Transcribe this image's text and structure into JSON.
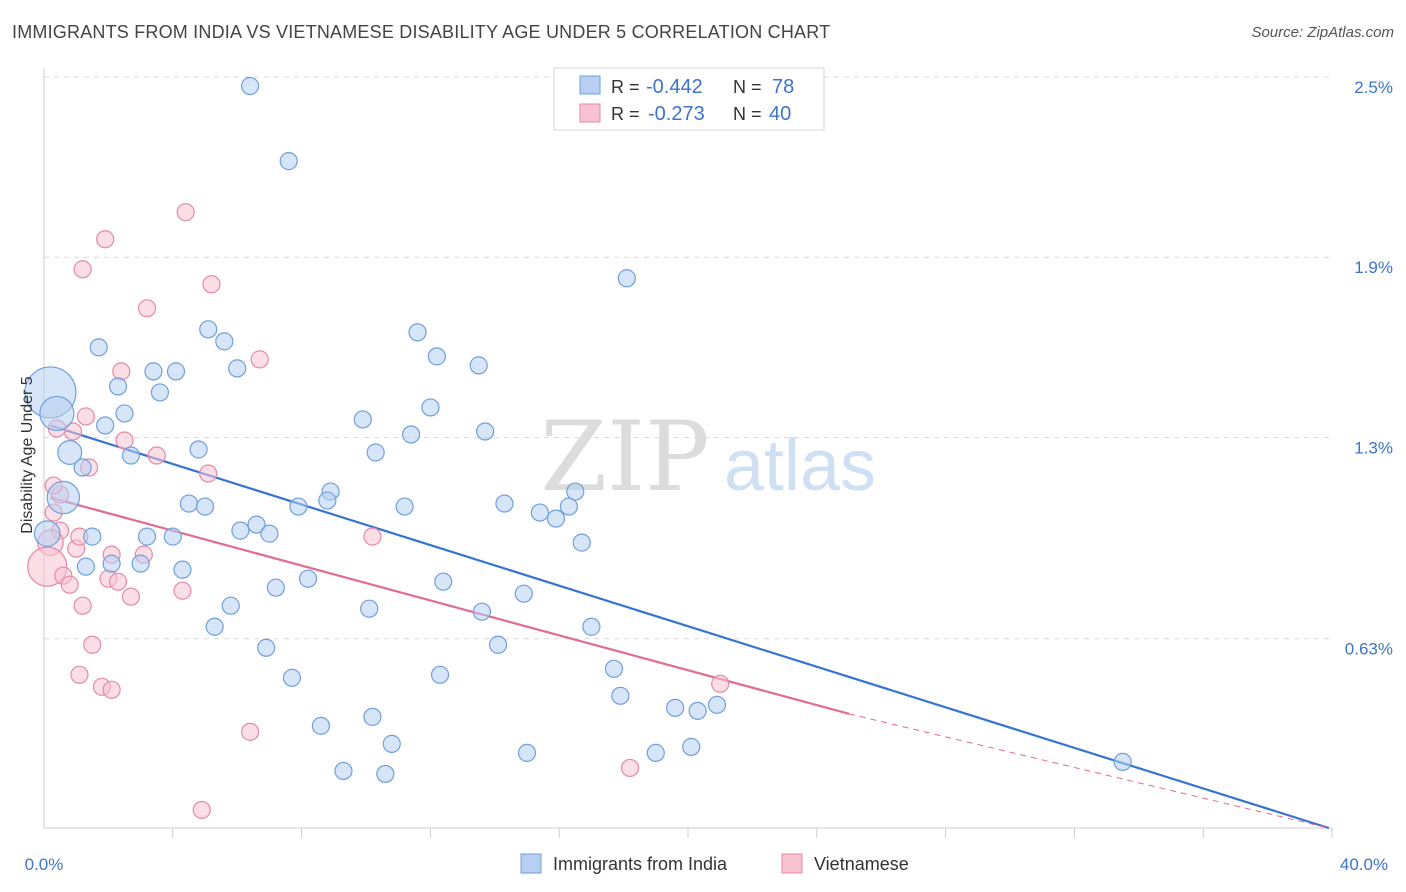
{
  "title": "IMMIGRANTS FROM INDIA VS VIETNAMESE DISABILITY AGE UNDER 5 CORRELATION CHART",
  "source": "Source: ZipAtlas.com",
  "watermark": {
    "zip": "ZIP",
    "atlas": "atlas"
  },
  "colors": {
    "india_fill": "#b6cff2",
    "india_stroke": "#6f9fdc",
    "india_line": "#3574d0",
    "viet_fill": "#f7c3d2",
    "viet_stroke": "#e58aa7",
    "viet_line": "#e06b96",
    "tick_label": "#3d74c9",
    "grid": "#d8d8d8"
  },
  "stats_box": {
    "india": {
      "r_label": "R =",
      "r_value": "-0.442",
      "n_label": "N =",
      "n_value": "78"
    },
    "viet": {
      "r_label": "R =",
      "r_value": "-0.273",
      "n_label": "N =",
      "n_value": "40"
    }
  },
  "chart_data": {
    "type": "scatter",
    "title": "IMMIGRANTS FROM INDIA VS VIETNAMESE DISABILITY AGE UNDER 5 CORRELATION CHART",
    "xlabel": "",
    "ylabel": "Disability Age Under 5",
    "xlim": [
      0,
      40
    ],
    "ylim": [
      0,
      2.5
    ],
    "x_tick_labels": [
      "0.0%",
      "40.0%"
    ],
    "y_ticks": [
      2.5,
      1.9,
      1.3,
      0.63
    ],
    "y_tick_labels": [
      "2.5%",
      "1.9%",
      "1.3%",
      "0.63%"
    ],
    "grid": true,
    "legend_position": "bottom-center",
    "series": [
      {
        "name": "Immigrants from India",
        "trend": {
          "x": [
            0.2,
            39.9
          ],
          "y": [
            1.34,
            0.0
          ]
        },
        "points": [
          {
            "x": 6.4,
            "y": 2.47
          },
          {
            "x": 7.6,
            "y": 2.22
          },
          {
            "x": 18.1,
            "y": 1.83
          },
          {
            "x": 0.2,
            "y": 1.45,
            "s": 3
          },
          {
            "x": 0.4,
            "y": 1.38,
            "s": 2
          },
          {
            "x": 1.7,
            "y": 1.6
          },
          {
            "x": 5.1,
            "y": 1.66
          },
          {
            "x": 5.6,
            "y": 1.62
          },
          {
            "x": 3.4,
            "y": 1.52
          },
          {
            "x": 4.1,
            "y": 1.52
          },
          {
            "x": 6.0,
            "y": 1.53
          },
          {
            "x": 2.3,
            "y": 1.47
          },
          {
            "x": 3.6,
            "y": 1.45
          },
          {
            "x": 11.6,
            "y": 1.65
          },
          {
            "x": 12.2,
            "y": 1.57
          },
          {
            "x": 13.5,
            "y": 1.54
          },
          {
            "x": 2.5,
            "y": 1.38
          },
          {
            "x": 1.9,
            "y": 1.34
          },
          {
            "x": 9.9,
            "y": 1.36
          },
          {
            "x": 12.0,
            "y": 1.4
          },
          {
            "x": 0.8,
            "y": 1.25,
            "s": 1.4
          },
          {
            "x": 2.7,
            "y": 1.24
          },
          {
            "x": 4.8,
            "y": 1.26
          },
          {
            "x": 10.3,
            "y": 1.25
          },
          {
            "x": 11.4,
            "y": 1.31
          },
          {
            "x": 13.7,
            "y": 1.32
          },
          {
            "x": 1.2,
            "y": 1.2
          },
          {
            "x": 8.9,
            "y": 1.12
          },
          {
            "x": 0.6,
            "y": 1.1,
            "s": 1.9
          },
          {
            "x": 4.5,
            "y": 1.08
          },
          {
            "x": 5.0,
            "y": 1.07
          },
          {
            "x": 7.9,
            "y": 1.07
          },
          {
            "x": 8.8,
            "y": 1.09
          },
          {
            "x": 11.2,
            "y": 1.07
          },
          {
            "x": 14.3,
            "y": 1.08
          },
          {
            "x": 15.4,
            "y": 1.05
          },
          {
            "x": 16.3,
            "y": 1.07
          },
          {
            "x": 16.5,
            "y": 1.12
          },
          {
            "x": 15.9,
            "y": 1.03
          },
          {
            "x": 6.6,
            "y": 1.01
          },
          {
            "x": 0.1,
            "y": 0.98,
            "s": 1.5
          },
          {
            "x": 1.5,
            "y": 0.97
          },
          {
            "x": 3.2,
            "y": 0.97
          },
          {
            "x": 4.0,
            "y": 0.97
          },
          {
            "x": 6.1,
            "y": 0.99
          },
          {
            "x": 7.0,
            "y": 0.98
          },
          {
            "x": 16.7,
            "y": 0.95
          },
          {
            "x": 2.1,
            "y": 0.88
          },
          {
            "x": 3.0,
            "y": 0.88
          },
          {
            "x": 4.3,
            "y": 0.86
          },
          {
            "x": 8.2,
            "y": 0.83
          },
          {
            "x": 7.2,
            "y": 0.8
          },
          {
            "x": 12.4,
            "y": 0.82
          },
          {
            "x": 14.9,
            "y": 0.78
          },
          {
            "x": 5.8,
            "y": 0.74
          },
          {
            "x": 10.1,
            "y": 0.73
          },
          {
            "x": 5.3,
            "y": 0.67
          },
          {
            "x": 13.6,
            "y": 0.72
          },
          {
            "x": 17.0,
            "y": 0.67
          },
          {
            "x": 6.9,
            "y": 0.6
          },
          {
            "x": 14.1,
            "y": 0.61
          },
          {
            "x": 17.7,
            "y": 0.53
          },
          {
            "x": 7.7,
            "y": 0.5
          },
          {
            "x": 12.3,
            "y": 0.51
          },
          {
            "x": 17.9,
            "y": 0.44
          },
          {
            "x": 19.6,
            "y": 0.4
          },
          {
            "x": 20.3,
            "y": 0.39
          },
          {
            "x": 20.9,
            "y": 0.41
          },
          {
            "x": 10.2,
            "y": 0.37
          },
          {
            "x": 8.6,
            "y": 0.34
          },
          {
            "x": 10.8,
            "y": 0.28
          },
          {
            "x": 15.0,
            "y": 0.25
          },
          {
            "x": 19.0,
            "y": 0.25
          },
          {
            "x": 20.1,
            "y": 0.27
          },
          {
            "x": 9.3,
            "y": 0.19
          },
          {
            "x": 10.6,
            "y": 0.18
          },
          {
            "x": 33.5,
            "y": 0.22
          },
          {
            "x": 1.3,
            "y": 0.87
          }
        ]
      },
      {
        "name": "Vietnamese",
        "trend": {
          "x": [
            0.2,
            25.0
          ],
          "y": [
            1.1,
            0.38
          ]
        },
        "trend_extension": {
          "x": [
            25.0,
            39.9
          ],
          "y": [
            0.38,
            0.0
          ]
        },
        "points": [
          {
            "x": 4.4,
            "y": 2.05
          },
          {
            "x": 1.9,
            "y": 1.96
          },
          {
            "x": 1.2,
            "y": 1.86
          },
          {
            "x": 5.2,
            "y": 1.81
          },
          {
            "x": 3.2,
            "y": 1.73
          },
          {
            "x": 6.7,
            "y": 1.56
          },
          {
            "x": 2.4,
            "y": 1.52
          },
          {
            "x": 1.3,
            "y": 1.37
          },
          {
            "x": 0.4,
            "y": 1.33
          },
          {
            "x": 0.9,
            "y": 1.32
          },
          {
            "x": 2.5,
            "y": 1.29
          },
          {
            "x": 3.5,
            "y": 1.24
          },
          {
            "x": 1.4,
            "y": 1.2
          },
          {
            "x": 5.1,
            "y": 1.18
          },
          {
            "x": 0.5,
            "y": 1.11
          },
          {
            "x": 0.3,
            "y": 1.05
          },
          {
            "x": 0.5,
            "y": 0.99
          },
          {
            "x": 10.2,
            "y": 0.97
          },
          {
            "x": 0.2,
            "y": 0.95,
            "s": 1.5
          },
          {
            "x": 0.1,
            "y": 0.87,
            "s": 2.3
          },
          {
            "x": 1.0,
            "y": 0.93
          },
          {
            "x": 2.1,
            "y": 0.91
          },
          {
            "x": 3.1,
            "y": 0.91
          },
          {
            "x": 0.6,
            "y": 0.84
          },
          {
            "x": 0.8,
            "y": 0.81
          },
          {
            "x": 2.0,
            "y": 0.83
          },
          {
            "x": 2.3,
            "y": 0.82
          },
          {
            "x": 4.3,
            "y": 0.79
          },
          {
            "x": 2.7,
            "y": 0.77
          },
          {
            "x": 1.2,
            "y": 0.74
          },
          {
            "x": 1.5,
            "y": 0.61
          },
          {
            "x": 1.1,
            "y": 0.51
          },
          {
            "x": 1.8,
            "y": 0.47
          },
          {
            "x": 2.1,
            "y": 0.46
          },
          {
            "x": 21.0,
            "y": 0.48
          },
          {
            "x": 6.4,
            "y": 0.32
          },
          {
            "x": 18.2,
            "y": 0.2
          },
          {
            "x": 4.9,
            "y": 0.06
          },
          {
            "x": 0.3,
            "y": 1.14
          },
          {
            "x": 1.1,
            "y": 0.97
          }
        ]
      }
    ]
  }
}
